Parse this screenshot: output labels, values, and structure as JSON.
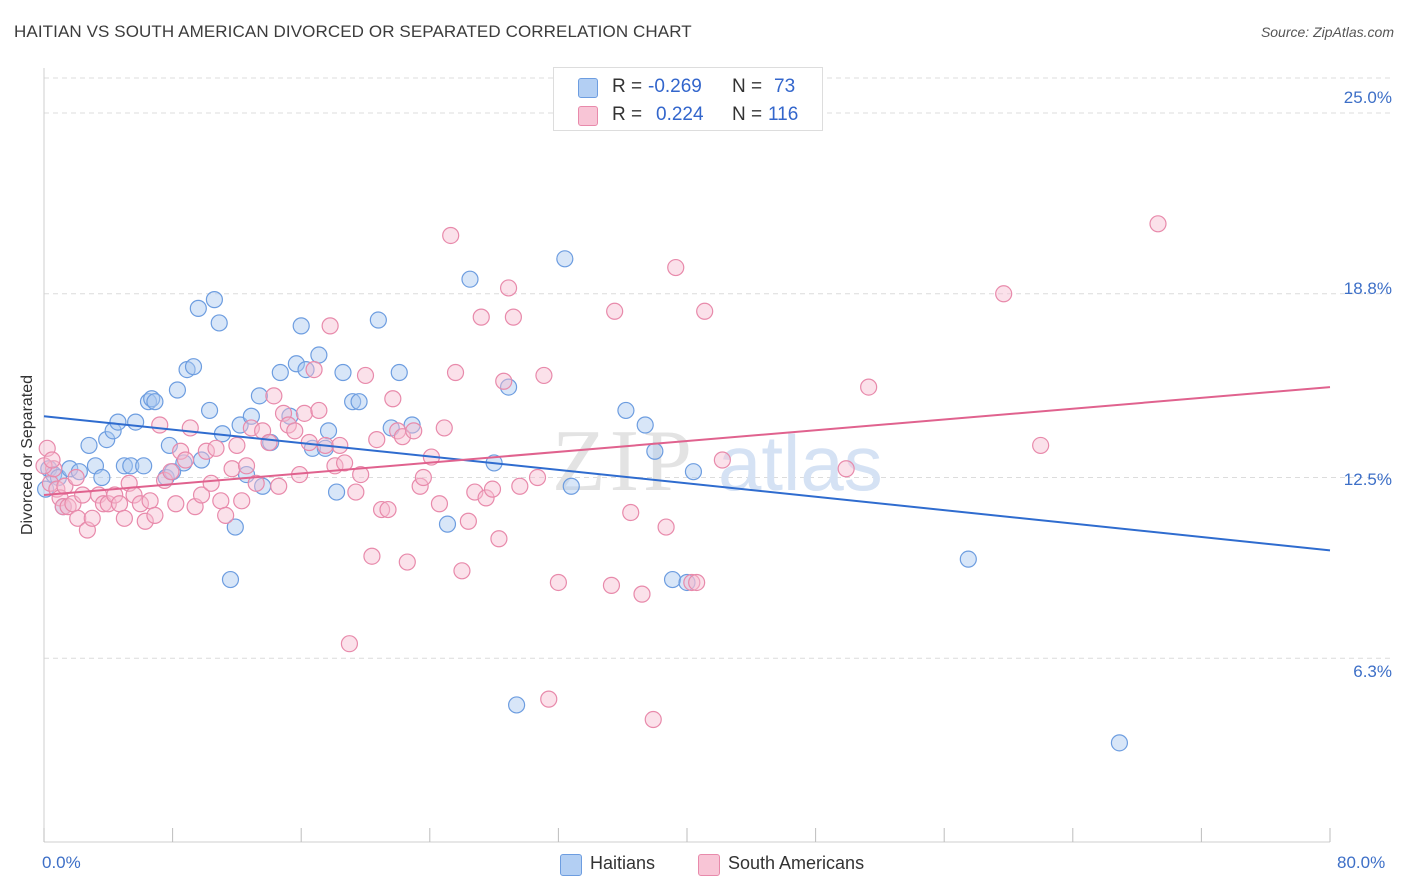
{
  "title": "HAITIAN VS SOUTH AMERICAN DIVORCED OR SEPARATED CORRELATION CHART",
  "source": "Source: ZipAtlas.com",
  "watermark": "ZIPatlas",
  "stats": [
    {
      "r_label": "R =",
      "r_value": "-0.269",
      "n_label": "N =",
      "n_value": "73",
      "color": "#a9c8f0",
      "border": "#6d9de0"
    },
    {
      "r_label": "R =",
      "r_value": "0.224",
      "n_label": "N =",
      "n_value": "116",
      "color": "#f7bcd0",
      "border": "#e88aab"
    }
  ],
  "legend": [
    {
      "label": "Haitians",
      "color": "#b3cff3",
      "border": "#6d9de0"
    },
    {
      "label": "South Americans",
      "color": "#f8c5d6",
      "border": "#e88aab"
    }
  ],
  "chart_data": {
    "type": "scatter",
    "title": "HAITIAN VS SOUTH AMERICAN DIVORCED OR SEPARATED CORRELATION CHART",
    "xlabel": "",
    "ylabel": "Divorced or Separated",
    "xlim": [
      0,
      80
    ],
    "ylim": [
      0,
      26.2
    ],
    "x_tick_labels": [
      "0.0%",
      "80.0%"
    ],
    "y_ticks": [
      6.3,
      12.5,
      18.8,
      25.0
    ],
    "y_tick_labels": [
      "6.3%",
      "12.5%",
      "18.8%",
      "25.0%"
    ],
    "grid": "horizontal dashed",
    "legend_position": "bottom-center",
    "series": [
      {
        "name": "Haitians",
        "color": "#6d9de0",
        "fill": "#a9c8f0",
        "trend": {
          "x": [
            0,
            80
          ],
          "y": [
            14.6,
            10.0
          ]
        },
        "points": [
          [
            0.3,
            12.8
          ],
          [
            0.6,
            12.6
          ],
          [
            0.9,
            12.5
          ],
          [
            1.2,
            11.5
          ],
          [
            1.6,
            12.8
          ],
          [
            2.2,
            12.7
          ],
          [
            2.8,
            13.6
          ],
          [
            3.2,
            12.9
          ],
          [
            3.6,
            12.5
          ],
          [
            3.9,
            13.8
          ],
          [
            4.3,
            14.1
          ],
          [
            4.6,
            14.4
          ],
          [
            5.0,
            12.9
          ],
          [
            5.4,
            12.9
          ],
          [
            5.7,
            14.4
          ],
          [
            6.2,
            12.9
          ],
          [
            6.5,
            15.1
          ],
          [
            6.7,
            15.2
          ],
          [
            6.9,
            15.1
          ],
          [
            7.6,
            12.5
          ],
          [
            7.8,
            13.6
          ],
          [
            8.0,
            12.7
          ],
          [
            8.3,
            15.5
          ],
          [
            8.7,
            13.0
          ],
          [
            8.9,
            16.2
          ],
          [
            9.3,
            16.3
          ],
          [
            9.6,
            18.3
          ],
          [
            9.8,
            13.1
          ],
          [
            10.3,
            14.8
          ],
          [
            10.6,
            18.6
          ],
          [
            10.9,
            17.8
          ],
          [
            11.1,
            14.0
          ],
          [
            11.6,
            9.0
          ],
          [
            11.9,
            10.8
          ],
          [
            12.2,
            14.3
          ],
          [
            12.6,
            12.6
          ],
          [
            12.9,
            14.6
          ],
          [
            13.4,
            15.3
          ],
          [
            13.6,
            12.2
          ],
          [
            14.1,
            13.7
          ],
          [
            14.7,
            16.1
          ],
          [
            15.3,
            14.6
          ],
          [
            15.7,
            16.4
          ],
          [
            16.0,
            17.7
          ],
          [
            16.3,
            16.2
          ],
          [
            16.7,
            13.5
          ],
          [
            17.1,
            16.7
          ],
          [
            17.5,
            13.5
          ],
          [
            17.7,
            14.1
          ],
          [
            18.2,
            12.0
          ],
          [
            18.6,
            16.1
          ],
          [
            19.2,
            15.1
          ],
          [
            19.6,
            15.1
          ],
          [
            20.8,
            17.9
          ],
          [
            21.6,
            14.2
          ],
          [
            22.1,
            16.1
          ],
          [
            22.9,
            14.3
          ],
          [
            25.1,
            10.9
          ],
          [
            26.5,
            19.3
          ],
          [
            28.0,
            13.0
          ],
          [
            28.9,
            15.6
          ],
          [
            29.4,
            4.7
          ],
          [
            32.4,
            20.0
          ],
          [
            32.8,
            12.2
          ],
          [
            36.2,
            14.8
          ],
          [
            37.4,
            14.3
          ],
          [
            38.0,
            13.4
          ],
          [
            39.1,
            9.0
          ],
          [
            40.0,
            8.9
          ],
          [
            40.4,
            12.7
          ],
          [
            57.5,
            9.7
          ],
          [
            66.9,
            3.4
          ],
          [
            0.1,
            12.1
          ]
        ]
      },
      {
        "name": "South Americans",
        "color": "#e88aab",
        "fill": "#f7bcd0",
        "trend": {
          "x": [
            0,
            80
          ],
          "y": [
            11.9,
            15.6
          ]
        },
        "points": [
          [
            0.2,
            13.5
          ],
          [
            0.4,
            12.3
          ],
          [
            0.6,
            12.8
          ],
          [
            0.8,
            12.1
          ],
          [
            1.0,
            11.8
          ],
          [
            1.2,
            11.5
          ],
          [
            1.5,
            11.5
          ],
          [
            1.8,
            11.6
          ],
          [
            2.1,
            11.1
          ],
          [
            2.4,
            11.9
          ],
          [
            2.7,
            10.7
          ],
          [
            3.0,
            11.1
          ],
          [
            3.4,
            11.9
          ],
          [
            3.7,
            11.6
          ],
          [
            4.0,
            11.6
          ],
          [
            4.4,
            11.9
          ],
          [
            4.7,
            11.6
          ],
          [
            5.0,
            11.1
          ],
          [
            5.3,
            12.3
          ],
          [
            5.6,
            11.9
          ],
          [
            6.0,
            11.6
          ],
          [
            6.3,
            11.0
          ],
          [
            6.6,
            11.7
          ],
          [
            6.9,
            11.2
          ],
          [
            7.2,
            14.3
          ],
          [
            7.5,
            12.4
          ],
          [
            7.9,
            12.7
          ],
          [
            8.2,
            11.6
          ],
          [
            8.5,
            13.4
          ],
          [
            8.8,
            13.1
          ],
          [
            9.1,
            14.2
          ],
          [
            9.4,
            11.5
          ],
          [
            9.8,
            11.9
          ],
          [
            10.1,
            13.4
          ],
          [
            10.4,
            12.3
          ],
          [
            10.7,
            13.5
          ],
          [
            11.0,
            11.7
          ],
          [
            11.3,
            11.2
          ],
          [
            11.7,
            12.8
          ],
          [
            12.0,
            13.6
          ],
          [
            12.3,
            11.7
          ],
          [
            12.6,
            12.9
          ],
          [
            12.9,
            14.2
          ],
          [
            13.2,
            12.3
          ],
          [
            13.6,
            14.1
          ],
          [
            14.0,
            13.7
          ],
          [
            14.3,
            15.3
          ],
          [
            14.6,
            12.2
          ],
          [
            14.9,
            14.7
          ],
          [
            15.2,
            14.3
          ],
          [
            15.6,
            14.1
          ],
          [
            15.9,
            12.6
          ],
          [
            16.2,
            14.7
          ],
          [
            16.5,
            13.7
          ],
          [
            16.8,
            16.2
          ],
          [
            17.1,
            14.8
          ],
          [
            17.5,
            13.6
          ],
          [
            17.8,
            17.7
          ],
          [
            18.1,
            12.9
          ],
          [
            18.4,
            13.6
          ],
          [
            18.7,
            13.0
          ],
          [
            19.0,
            6.8
          ],
          [
            19.4,
            12.0
          ],
          [
            19.7,
            12.6
          ],
          [
            20.0,
            16.0
          ],
          [
            20.4,
            9.8
          ],
          [
            20.7,
            13.8
          ],
          [
            21.0,
            11.4
          ],
          [
            21.4,
            11.4
          ],
          [
            21.7,
            15.2
          ],
          [
            22.0,
            14.1
          ],
          [
            22.3,
            13.9
          ],
          [
            22.6,
            9.6
          ],
          [
            23.0,
            14.1
          ],
          [
            23.4,
            12.2
          ],
          [
            23.6,
            12.5
          ],
          [
            24.1,
            13.2
          ],
          [
            24.6,
            11.6
          ],
          [
            24.9,
            14.2
          ],
          [
            25.3,
            20.8
          ],
          [
            25.6,
            16.1
          ],
          [
            26.0,
            9.3
          ],
          [
            26.4,
            11.0
          ],
          [
            26.8,
            12.0
          ],
          [
            27.2,
            18.0
          ],
          [
            27.5,
            11.8
          ],
          [
            27.9,
            12.1
          ],
          [
            28.3,
            10.4
          ],
          [
            28.6,
            15.8
          ],
          [
            28.9,
            19.0
          ],
          [
            29.2,
            18.0
          ],
          [
            29.6,
            12.2
          ],
          [
            30.7,
            12.5
          ],
          [
            31.1,
            16.0
          ],
          [
            31.4,
            4.9
          ],
          [
            32.0,
            8.9
          ],
          [
            35.3,
            8.8
          ],
          [
            35.5,
            18.2
          ],
          [
            36.5,
            11.3
          ],
          [
            37.2,
            8.5
          ],
          [
            37.9,
            4.2
          ],
          [
            38.7,
            10.8
          ],
          [
            39.3,
            19.7
          ],
          [
            40.3,
            8.9
          ],
          [
            40.6,
            8.9
          ],
          [
            41.1,
            18.2
          ],
          [
            42.2,
            13.1
          ],
          [
            49.9,
            12.8
          ],
          [
            51.3,
            15.6
          ],
          [
            59.7,
            18.8
          ],
          [
            62.0,
            13.6
          ],
          [
            69.3,
            21.2
          ],
          [
            0.0,
            12.9
          ],
          [
            1.3,
            12.2
          ],
          [
            2.0,
            12.5
          ],
          [
            0.5,
            13.1
          ]
        ]
      }
    ]
  }
}
